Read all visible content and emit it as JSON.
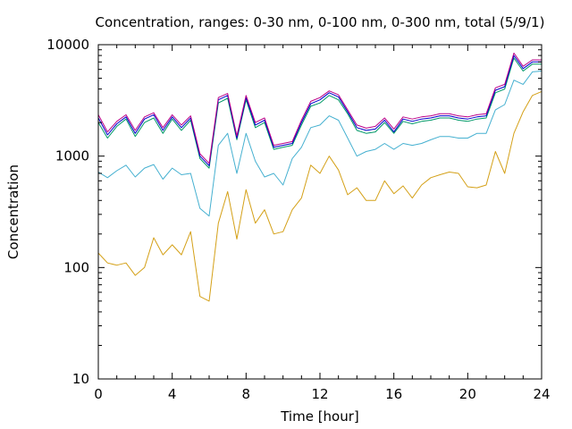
{
  "chart_data": {
    "type": "line",
    "title": "Concentration, ranges: 0-30 nm, 0-100 nm, 0-300 nm, total (5/9/1)",
    "xlabel": "Time [hour]",
    "ylabel": "Concentration",
    "x_ticks": [
      0,
      4,
      8,
      12,
      16,
      20,
      24
    ],
    "y_ticks": [
      10,
      100,
      1000,
      10000
    ],
    "xlim": [
      0,
      24
    ],
    "ylim": [
      10,
      10000
    ],
    "y_scale": "log",
    "grid": false,
    "legend": "none",
    "x": [
      0,
      0.5,
      1,
      1.5,
      2,
      2.5,
      3,
      3.5,
      4,
      4.5,
      5,
      5.5,
      6,
      6.5,
      7,
      7.5,
      8,
      8.5,
      9,
      9.5,
      10,
      10.5,
      11,
      11.5,
      12,
      12.5,
      13,
      13.5,
      14,
      14.5,
      15,
      15.5,
      16,
      16.5,
      17,
      17.5,
      18,
      18.5,
      19,
      19.5,
      20,
      20.5,
      21,
      21.5,
      22,
      22.5,
      23,
      23.5,
      24
    ],
    "series": [
      {
        "color": "#d4a017",
        "values": [
          135,
          110,
          105,
          110,
          85,
          100,
          185,
          130,
          160,
          130,
          210,
          55,
          50,
          250,
          480,
          180,
          500,
          250,
          330,
          200,
          210,
          330,
          420,
          830,
          700,
          1000,
          750,
          450,
          520,
          400,
          400,
          600,
          460,
          540,
          420,
          550,
          640,
          680,
          720,
          700,
          530,
          520,
          550,
          1100,
          700,
          1600,
          2500,
          3500,
          3800
        ]
      },
      {
        "color": "#45b0d0",
        "values": [
          720,
          640,
          740,
          830,
          650,
          780,
          840,
          620,
          780,
          680,
          700,
          340,
          290,
          1250,
          1600,
          700,
          1600,
          900,
          650,
          700,
          550,
          950,
          1200,
          1800,
          1900,
          2300,
          2100,
          1450,
          1000,
          1100,
          1150,
          1300,
          1150,
          1300,
          1250,
          1300,
          1400,
          1500,
          1500,
          1450,
          1450,
          1600,
          1600,
          2600,
          2900,
          4800,
          4400,
          5700,
          5800
        ]
      },
      {
        "color": "#009966",
        "values": [
          2000,
          1450,
          1850,
          2150,
          1500,
          2000,
          2200,
          1600,
          2150,
          1700,
          2100,
          950,
          780,
          3000,
          3300,
          1400,
          3200,
          1800,
          2000,
          1150,
          1200,
          1250,
          1900,
          2800,
          3000,
          3500,
          3200,
          2400,
          1700,
          1600,
          1650,
          2000,
          1600,
          2050,
          1950,
          2050,
          2100,
          2200,
          2200,
          2100,
          2050,
          2150,
          2200,
          3700,
          4000,
          7600,
          5800,
          6700,
          6700
        ]
      },
      {
        "color": "#0000cc",
        "values": [
          2200,
          1550,
          1950,
          2250,
          1600,
          2150,
          2350,
          1700,
          2250,
          1800,
          2200,
          1000,
          820,
          3200,
          3500,
          1450,
          3350,
          1900,
          2100,
          1200,
          1250,
          1300,
          2000,
          2950,
          3200,
          3700,
          3400,
          2500,
          1800,
          1700,
          1750,
          2100,
          1650,
          2150,
          2050,
          2150,
          2200,
          2300,
          2300,
          2200,
          2150,
          2250,
          2300,
          3900,
          4200,
          8000,
          6100,
          7000,
          7000
        ]
      },
      {
        "color": "#bb0088",
        "values": [
          2350,
          1650,
          2050,
          2350,
          1700,
          2250,
          2450,
          1800,
          2350,
          1900,
          2300,
          1050,
          860,
          3350,
          3650,
          1520,
          3500,
          2000,
          2200,
          1250,
          1300,
          1350,
          2100,
          3100,
          3350,
          3850,
          3550,
          2600,
          1900,
          1780,
          1850,
          2200,
          1750,
          2250,
          2150,
          2250,
          2300,
          2400,
          2400,
          2300,
          2250,
          2350,
          2400,
          4100,
          4400,
          8400,
          6400,
          7300,
          7300
        ]
      }
    ]
  }
}
